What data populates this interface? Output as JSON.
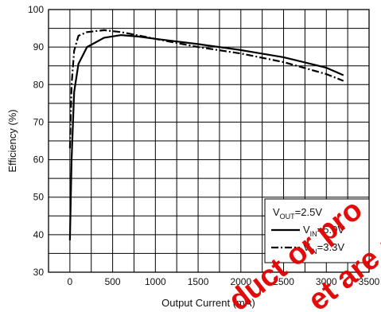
{
  "chart_data": {
    "type": "line",
    "title": "",
    "xlabel": "Output Current (mA)",
    "ylabel": "Efficiency (%)",
    "xlim": [
      -250,
      3500
    ],
    "ylim": [
      30,
      100
    ],
    "x_ticks": [
      0,
      500,
      1000,
      1500,
      2000,
      2500,
      3000,
      3500
    ],
    "y_ticks": [
      30,
      40,
      50,
      60,
      70,
      80,
      90,
      100
    ],
    "grid": true,
    "legend": {
      "placement": "bottom-right",
      "header_main": "V",
      "header_sub": "OUT",
      "header_rest": "=2.5V",
      "entries": [
        {
          "main": "V",
          "sub": "IN",
          "rest": "=5.0V",
          "style": "solid"
        },
        {
          "main": "V",
          "sub": "IN",
          "rest": "=3.3V",
          "style": "dash-dot"
        }
      ]
    },
    "series": [
      {
        "name": "VIN=5.0V",
        "color": "#000000",
        "style": "solid",
        "points": [
          [
            0,
            38.5
          ],
          [
            20,
            60
          ],
          [
            50,
            78
          ],
          [
            100,
            85.5
          ],
          [
            200,
            90
          ],
          [
            400,
            92.5
          ],
          [
            600,
            93.2
          ],
          [
            800,
            92.8
          ],
          [
            1000,
            92.2
          ],
          [
            1500,
            90.8
          ],
          [
            2000,
            89.2
          ],
          [
            2500,
            87.3
          ],
          [
            3000,
            84.5
          ],
          [
            3200,
            82.5
          ]
        ]
      },
      {
        "name": "VIN=3.3V",
        "color": "#000000",
        "style": "dash-dot",
        "points": [
          [
            0,
            63
          ],
          [
            20,
            80
          ],
          [
            50,
            89
          ],
          [
            100,
            93
          ],
          [
            200,
            94
          ],
          [
            400,
            94.5
          ],
          [
            600,
            94
          ],
          [
            800,
            93.1
          ],
          [
            1000,
            92.2
          ],
          [
            1500,
            90
          ],
          [
            2000,
            88.3
          ],
          [
            2500,
            86
          ],
          [
            3000,
            82.8
          ],
          [
            3200,
            81
          ]
        ]
      }
    ]
  },
  "watermark": {
    "color": "#e00000",
    "lines": [
      "duct or pro",
      "et are pr"
    ]
  }
}
